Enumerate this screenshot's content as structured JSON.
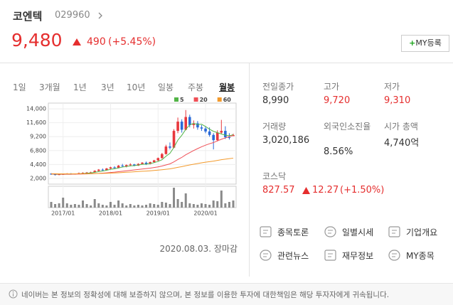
{
  "header": {
    "name": "코엔텍",
    "code": "029960",
    "price": "9,480",
    "change": "490",
    "change_rate": "(+5.45%)",
    "my_plus": "+",
    "my_label": "MY등록"
  },
  "tabs": [
    "1일",
    "3개월",
    "1년",
    "3년",
    "10년",
    "일봉",
    "주봉",
    "월봉"
  ],
  "active_tab": 7,
  "chart_data": {
    "type": "candlestick",
    "x": [
      "2016/10",
      "2016/11",
      "2016/12",
      "2017/01",
      "2017/02",
      "2017/03",
      "2017/04",
      "2017/05",
      "2017/06",
      "2017/07",
      "2017/08",
      "2017/09",
      "2017/10",
      "2017/11",
      "2017/12",
      "2018/01",
      "2018/02",
      "2018/03",
      "2018/04",
      "2018/05",
      "2018/06",
      "2018/07",
      "2018/08",
      "2018/09",
      "2018/10",
      "2018/11",
      "2018/12",
      "2019/01",
      "2019/02",
      "2019/03",
      "2019/04",
      "2019/05",
      "2019/06",
      "2019/07",
      "2019/08",
      "2019/09",
      "2019/10",
      "2019/11",
      "2019/12",
      "2020/01",
      "2020/02",
      "2020/03",
      "2020/04",
      "2020/05",
      "2020/06",
      "2020/07",
      "2020/08"
    ],
    "candles": [
      [
        2800,
        2900,
        2600,
        2700
      ],
      [
        2700,
        2800,
        2500,
        2600
      ],
      [
        2600,
        2750,
        2550,
        2700
      ],
      [
        2700,
        2800,
        2600,
        2750
      ],
      [
        2750,
        2900,
        2700,
        2800
      ],
      [
        2800,
        2900,
        2650,
        2700
      ],
      [
        2700,
        2850,
        2650,
        2800
      ],
      [
        2800,
        3000,
        2750,
        2900
      ],
      [
        2900,
        3050,
        2800,
        2950
      ],
      [
        2950,
        3100,
        2850,
        3000
      ],
      [
        3000,
        3150,
        2900,
        3050
      ],
      [
        3050,
        3400,
        3000,
        3300
      ],
      [
        3300,
        3600,
        3200,
        3500
      ],
      [
        3500,
        3700,
        3300,
        3400
      ],
      [
        3400,
        3800,
        3350,
        3700
      ],
      [
        3700,
        4000,
        3600,
        3900
      ],
      [
        3900,
        4100,
        3700,
        3800
      ],
      [
        3800,
        4300,
        3750,
        4200
      ],
      [
        4200,
        4500,
        4000,
        4100
      ],
      [
        4100,
        4400,
        3900,
        4300
      ],
      [
        4300,
        4600,
        4100,
        4400
      ],
      [
        4400,
        4500,
        4100,
        4200
      ],
      [
        4200,
        4600,
        4150,
        4500
      ],
      [
        4500,
        4800,
        4400,
        4700
      ],
      [
        4700,
        4900,
        4300,
        4500
      ],
      [
        4500,
        4900,
        4400,
        4800
      ],
      [
        4800,
        5200,
        4700,
        5100
      ],
      [
        5100,
        5600,
        5000,
        5500
      ],
      [
        5500,
        6400,
        5400,
        6200
      ],
      [
        6200,
        7800,
        6100,
        7500
      ],
      [
        7500,
        8200,
        7000,
        7300
      ],
      [
        7300,
        10500,
        7200,
        10200
      ],
      [
        10200,
        12500,
        9800,
        11800
      ],
      [
        11800,
        12200,
        9900,
        10400
      ],
      [
        10400,
        13800,
        10300,
        12600
      ],
      [
        12600,
        13000,
        10800,
        11200
      ],
      [
        11200,
        12000,
        10600,
        11500
      ],
      [
        11500,
        11900,
        10400,
        10800
      ],
      [
        10800,
        11200,
        10200,
        10600
      ],
      [
        10600,
        11000,
        9800,
        10100
      ],
      [
        10100,
        10800,
        9200,
        9500
      ],
      [
        9500,
        9800,
        7000,
        8600
      ],
      [
        8600,
        10300,
        8400,
        9900
      ],
      [
        9900,
        12100,
        9600,
        10200
      ],
      [
        10200,
        11000,
        8800,
        9100
      ],
      [
        9100,
        9800,
        8700,
        8990
      ],
      [
        9310,
        9720,
        9310,
        9480
      ]
    ],
    "up_color": "#e8383d",
    "down_color": "#2a6ad8",
    "series": [
      {
        "name": "5",
        "color": "#52b447",
        "values": [
          2750,
          2700,
          2700,
          2710,
          2710,
          2710,
          2750,
          2790,
          2830,
          2870,
          2940,
          3040,
          3160,
          3250,
          3390,
          3560,
          3660,
          3800,
          3940,
          4060,
          4160,
          4200,
          4300,
          4420,
          4460,
          4540,
          4720,
          4920,
          5220,
          5820,
          6320,
          7340,
          8600,
          9440,
          10460,
          11240,
          11500,
          11300,
          11340,
          10960,
          10500,
          10120,
          9900,
          9660,
          9460,
          9360,
          9530
        ]
      },
      {
        "name": "20",
        "color": "#ef4f56",
        "values": [
          2750,
          2740,
          2730,
          2720,
          2720,
          2720,
          2730,
          2740,
          2750,
          2770,
          2790,
          2820,
          2860,
          2900,
          2950,
          3010,
          3070,
          3150,
          3220,
          3300,
          3380,
          3450,
          3530,
          3610,
          3690,
          3770,
          3870,
          3980,
          4130,
          4320,
          4500,
          4840,
          5260,
          5620,
          6070,
          6440,
          6810,
          7140,
          7460,
          7730,
          7980,
          8180,
          8470,
          8750,
          8990,
          9210,
          9420
        ]
      },
      {
        "name": "60",
        "color": "#f39a2c",
        "values": [
          2800,
          2790,
          2780,
          2780,
          2780,
          2780,
          2780,
          2790,
          2790,
          2800,
          2810,
          2820,
          2840,
          2860,
          2880,
          2910,
          2940,
          2970,
          3010,
          3050,
          3090,
          3130,
          3180,
          3220,
          3260,
          3310,
          3360,
          3420,
          3490,
          3570,
          3640,
          3760,
          3900,
          4020,
          4180,
          4310,
          4440,
          4560,
          4680,
          4790,
          4890,
          4980,
          5100,
          5220,
          5310,
          5400,
          5490
        ]
      }
    ],
    "volume": [
      8,
      5,
      6,
      14,
      6,
      4,
      5,
      4,
      10,
      5,
      3,
      12,
      6,
      4,
      3,
      8,
      4,
      10,
      6,
      3,
      5,
      3,
      4,
      3,
      4,
      6,
      5,
      4,
      8,
      7,
      5,
      28,
      12,
      8,
      20,
      6,
      5,
      4,
      6,
      5,
      4,
      10,
      9,
      24,
      6,
      8,
      10
    ],
    "volume_color": "#8a8a8a",
    "vlim": [
      0,
      30
    ],
    "ylim": [
      1000,
      15000
    ],
    "yticks": [
      {
        "value": 2000,
        "label": "2,000"
      },
      {
        "value": 4400,
        "label": "4,400"
      },
      {
        "value": 6800,
        "label": "6,800"
      },
      {
        "value": 9200,
        "label": "9,200"
      },
      {
        "value": 11600,
        "label": "11,600"
      },
      {
        "value": 14000,
        "label": "14,000"
      }
    ],
    "xticks": [
      "2017/01",
      "2018/01",
      "2019/01",
      "2020/01"
    ],
    "grid": true
  },
  "date_note": "2020.08.03. 장마감",
  "stats": [
    {
      "label": "전일종가",
      "value": "8,990",
      "color": "#333333"
    },
    {
      "label": "고가",
      "value": "9,720",
      "color": "#e52e2e"
    },
    {
      "label": "저가",
      "value": "9,310",
      "color": "#e52e2e"
    },
    {
      "label": "거래량",
      "value": "3,020,186",
      "color": "#333333"
    },
    {
      "label": "외국인소진율",
      "value": "8.56%",
      "color": "#333333"
    },
    {
      "label": "시가 총액",
      "value": "4,740억",
      "color": "#333333"
    }
  ],
  "kosdaq": {
    "label": "코스닥",
    "value": "827.57",
    "change": "12.27",
    "rate": "(+1.50%)"
  },
  "links": [
    "종목토론",
    "일별시세",
    "기업개요",
    "관련뉴스",
    "재무정보",
    "MY종목"
  ],
  "notice": "네이버는 본 정보의 정확성에 대해 보증하지 않으며, 본 정보를 이용한 투자에 대한책임은 해당 투자자에게 귀속됩니다."
}
